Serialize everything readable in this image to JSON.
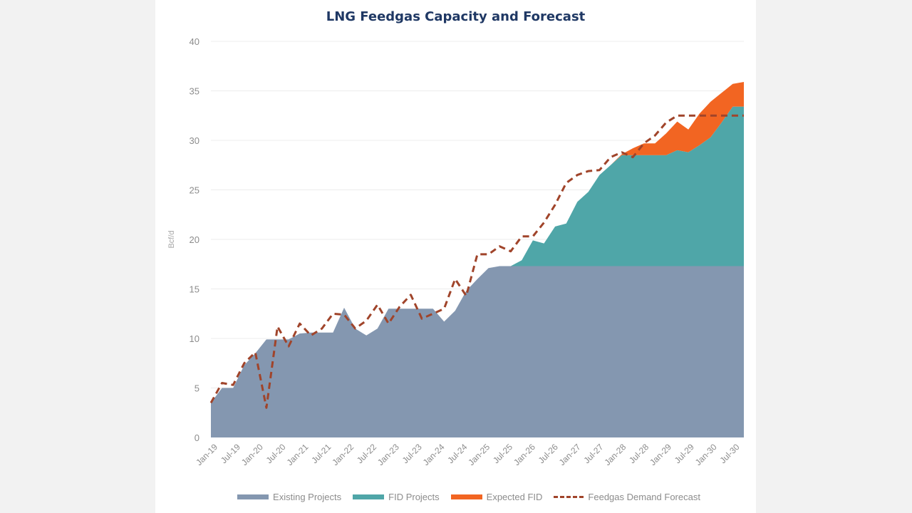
{
  "chart_data": {
    "type": "area",
    "title": "LNG Feedgas Capacity and Forecast",
    "ylabel": "Bcf/d",
    "xlabel": "",
    "ylim": [
      0,
      40
    ],
    "yticks": [
      "0",
      "5",
      "10",
      "15",
      "20",
      "25",
      "30",
      "35",
      "40"
    ],
    "grid": true,
    "legend_position": "bottom",
    "x_tick_labels": [
      "Jan-19",
      "Jul-19",
      "Jan-20",
      "Jul-20",
      "Jan-21",
      "Jul-21",
      "Jan-22",
      "Jul-22",
      "Jan-23",
      "Jul-23",
      "Jan-24",
      "Jul-24",
      "Jan-25",
      "Jul-25",
      "Jan-26",
      "Jul-26",
      "Jan-27",
      "Jul-27",
      "Jan-28",
      "Jul-28",
      "Jan-29",
      "Jul-29",
      "Jan-30",
      "Jul-30"
    ],
    "x": [
      "Jan-19",
      "Apr-19",
      "Jul-19",
      "Oct-19",
      "Jan-20",
      "Apr-20",
      "Jul-20",
      "Oct-20",
      "Jan-21",
      "Apr-21",
      "Jul-21",
      "Oct-21",
      "Jan-22",
      "Apr-22",
      "Jul-22",
      "Oct-22",
      "Jan-23",
      "Apr-23",
      "Jul-23",
      "Oct-23",
      "Jan-24",
      "Apr-24",
      "Jul-24",
      "Oct-24",
      "Jan-25",
      "Apr-25",
      "Jul-25",
      "Oct-25",
      "Jan-26",
      "Apr-26",
      "Jul-26",
      "Oct-26",
      "Jan-27",
      "Apr-27",
      "Jul-27",
      "Oct-27",
      "Jan-28",
      "Apr-28",
      "Jul-28",
      "Oct-28",
      "Jan-29",
      "Apr-29",
      "Jul-29",
      "Oct-29",
      "Jan-30",
      "Apr-30",
      "Jul-30",
      "Oct-30",
      "Dec-30"
    ],
    "series": [
      {
        "name": "Existing Projects",
        "color": "#8497b0",
        "values": [
          3.5,
          5.0,
          5.0,
          7.3,
          8.5,
          9.9,
          9.9,
          9.9,
          10.5,
          10.6,
          10.6,
          10.6,
          13.1,
          11.0,
          10.3,
          11.0,
          13.0,
          13.0,
          13.0,
          13.0,
          13.0,
          11.7,
          12.8,
          14.8,
          16.0,
          17.1,
          17.3,
          17.3,
          17.3,
          17.3,
          17.3,
          17.3,
          17.3,
          17.3,
          17.3,
          17.3,
          17.3,
          17.3,
          17.3,
          17.3,
          17.3,
          17.3,
          17.3,
          17.3,
          17.3,
          17.3,
          17.3,
          17.3,
          17.3
        ]
      },
      {
        "name": "FID Projects",
        "color": "#4fa6a8",
        "values": [
          0,
          0,
          0,
          0,
          0,
          0,
          0,
          0,
          0,
          0,
          0,
          0,
          0,
          0,
          0,
          0,
          0,
          0,
          0,
          0,
          0,
          0,
          0,
          0,
          0,
          0,
          0,
          0,
          0.6,
          2.6,
          2.3,
          4.0,
          4.3,
          6.5,
          7.5,
          9.2,
          10.2,
          11.2,
          11.2,
          11.2,
          11.2,
          11.2,
          11.7,
          11.5,
          12.2,
          13.0,
          14.5,
          16.1,
          16.1
        ]
      },
      {
        "name": "Expected FID",
        "color": "#f26522",
        "values": [
          0,
          0,
          0,
          0,
          0,
          0,
          0,
          0,
          0,
          0,
          0,
          0,
          0,
          0,
          0,
          0,
          0,
          0,
          0,
          0,
          0,
          0,
          0,
          0,
          0,
          0,
          0,
          0,
          0,
          0,
          0,
          0,
          0,
          0,
          0,
          0,
          0,
          0.1,
          0.7,
          1.2,
          1.2,
          2.2,
          2.9,
          2.3,
          3.2,
          3.6,
          3.0,
          2.3,
          2.5
        ]
      },
      {
        "name": "Feedgas Demand Forecast",
        "color": "#a0442a",
        "style": "dashed",
        "values": [
          3.5,
          5.5,
          5.3,
          7.5,
          8.6,
          3.0,
          11.2,
          9.2,
          11.5,
          10.3,
          11.0,
          12.5,
          12.4,
          11.0,
          11.8,
          13.4,
          11.5,
          13.2,
          14.4,
          12.0,
          12.5,
          13.0,
          16.0,
          14.3,
          18.5,
          18.5,
          19.3,
          18.8,
          20.3,
          20.3,
          21.7,
          23.5,
          25.7,
          26.5,
          26.9,
          27.0,
          28.3,
          28.8,
          28.3,
          29.7,
          30.5,
          31.8,
          32.5,
          32.5,
          32.5,
          32.5,
          32.5,
          32.5,
          32.5
        ]
      }
    ]
  }
}
